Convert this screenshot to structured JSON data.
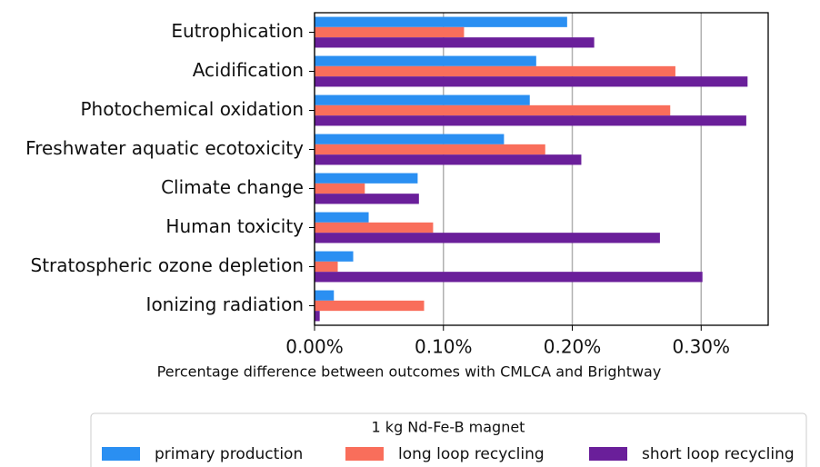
{
  "chart_data": {
    "type": "barh",
    "xlabel": "Percentage difference between outcomes with CMLCA and Brightway",
    "categories": [
      "Eutrophication",
      "Acidification",
      "Photochemical oxidation",
      "Freshwater aquatic ecotoxicity",
      "Climate change",
      "Human toxicity",
      "Stratospheric ozone depletion",
      "Ionizing radiation"
    ],
    "series": [
      {
        "name": "primary production",
        "color": "#2a8ff2",
        "values": [
          0.196,
          0.172,
          0.167,
          0.147,
          0.08,
          0.042,
          0.03,
          0.015
        ]
      },
      {
        "name": "long loop recycling",
        "color": "#f96e5b",
        "values": [
          0.116,
          0.28,
          0.276,
          0.179,
          0.039,
          0.092,
          0.018,
          0.085
        ]
      },
      {
        "name": "short loop recycling",
        "color": "#6a1f9a",
        "values": [
          0.217,
          0.336,
          0.335,
          0.207,
          0.081,
          0.268,
          0.301,
          0.004
        ]
      }
    ],
    "legend_title": "1 kg Nd-Fe-B magnet",
    "xlim": [
      0,
      0.352
    ],
    "xticks": [
      {
        "value": 0,
        "label": "0.00%"
      },
      {
        "value": 0.1,
        "label": "0.10%"
      },
      {
        "value": 0.2,
        "label": "0.20%"
      },
      {
        "value": 0.3,
        "label": "0.30%"
      }
    ],
    "grid": true,
    "legend": "bottom"
  }
}
